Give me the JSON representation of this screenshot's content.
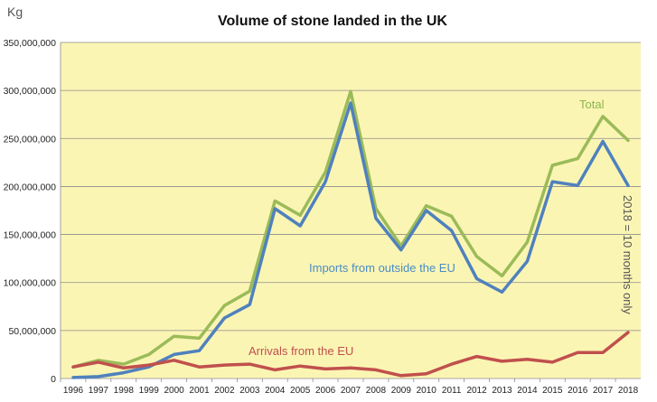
{
  "chart_data": {
    "type": "line",
    "title": "Volume of stone landed in the UK",
    "ylabel": "Kg",
    "xlabel": "",
    "x": [
      "1996",
      "1997",
      "1998",
      "1999",
      "2000",
      "2001",
      "2002",
      "2003",
      "2004",
      "2005",
      "2006",
      "2007",
      "2008",
      "2009",
      "2010",
      "2011",
      "2012",
      "2013",
      "2014",
      "2015",
      "2016",
      "2017",
      "2018"
    ],
    "ylim": [
      0,
      350000000
    ],
    "yticks": [
      0,
      50000000,
      100000000,
      150000000,
      200000000,
      250000000,
      300000000,
      350000000
    ],
    "ytick_labels": [
      "0",
      "50,000,000",
      "100,000,000",
      "150,000,000",
      "200,000,000",
      "250,000,000",
      "300,000,000",
      "350,000,000"
    ],
    "grid": true,
    "plot_background": "#fbf5b4",
    "series": [
      {
        "name": "Total",
        "color": "#9bbb59",
        "values": [
          12000000,
          19000000,
          15000000,
          25000000,
          44000000,
          42000000,
          76000000,
          91000000,
          185000000,
          170000000,
          215000000,
          299000000,
          177000000,
          138000000,
          180000000,
          169000000,
          127000000,
          107000000,
          142000000,
          222000000,
          229000000,
          273000000,
          248000000
        ]
      },
      {
        "name": "Imports from outside the EU",
        "color": "#4f81bd",
        "values": [
          1000000,
          2000000,
          6000000,
          12000000,
          25000000,
          29000000,
          63000000,
          77000000,
          177000000,
          159000000,
          205000000,
          287000000,
          167000000,
          134000000,
          175000000,
          154000000,
          104000000,
          90000000,
          122000000,
          205000000,
          201000000,
          247000000,
          201000000
        ]
      },
      {
        "name": "Arrivals from the EU",
        "color": "#c0504d",
        "values": [
          12000000,
          17000000,
          11000000,
          14000000,
          19000000,
          12000000,
          14000000,
          15000000,
          9000000,
          13000000,
          10000000,
          11000000,
          9000000,
          3000000,
          5000000,
          15000000,
          23000000,
          18000000,
          20000000,
          17000000,
          27000000,
          27000000,
          48000000
        ]
      }
    ],
    "annotations": {
      "total_label": "Total",
      "imports_label": "Imports from outside the EU",
      "eu_label": "Arrivals from the EU",
      "note": "2018 = 10 months only"
    }
  }
}
